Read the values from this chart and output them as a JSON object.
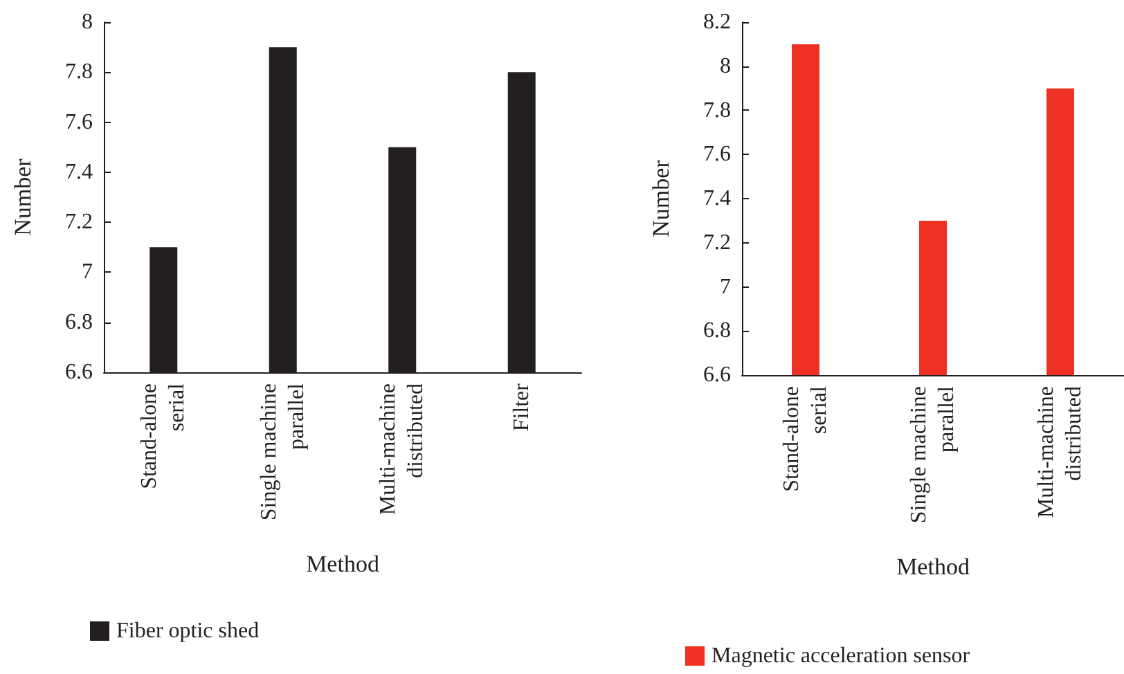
{
  "chart_data": [
    {
      "type": "bar",
      "xlabel": "Method",
      "ylabel": "Number",
      "categories": [
        "Stand-alone\nserial",
        "Single machine\nparallel",
        "Multi-machine\ndistributed",
        "Filter"
      ],
      "series": [
        {
          "name": "Fiber optic shed",
          "color": "#231f20",
          "values": [
            7.1,
            7.9,
            7.5,
            7.8
          ]
        }
      ],
      "ylim": [
        6.6,
        8
      ],
      "yticks": [
        6.6,
        6.8,
        7,
        7.2,
        7.4,
        7.6,
        7.8,
        8
      ],
      "grid": false,
      "legend": "bottom left"
    },
    {
      "type": "bar",
      "xlabel": "Method",
      "ylabel": "Number",
      "categories": [
        "Stand-alone\nserial",
        "Single machine\nparallel",
        "Multi-machine\ndistributed"
      ],
      "series": [
        {
          "name": "Magnetic acceleration sensor",
          "color": "#ee3124",
          "values": [
            8.1,
            7.3,
            7.9
          ]
        }
      ],
      "ylim": [
        6.6,
        8.2
      ],
      "yticks": [
        6.6,
        6.8,
        7,
        7.2,
        7.4,
        7.6,
        7.8,
        8,
        8.2
      ],
      "grid": false,
      "legend": "bottom left"
    }
  ]
}
